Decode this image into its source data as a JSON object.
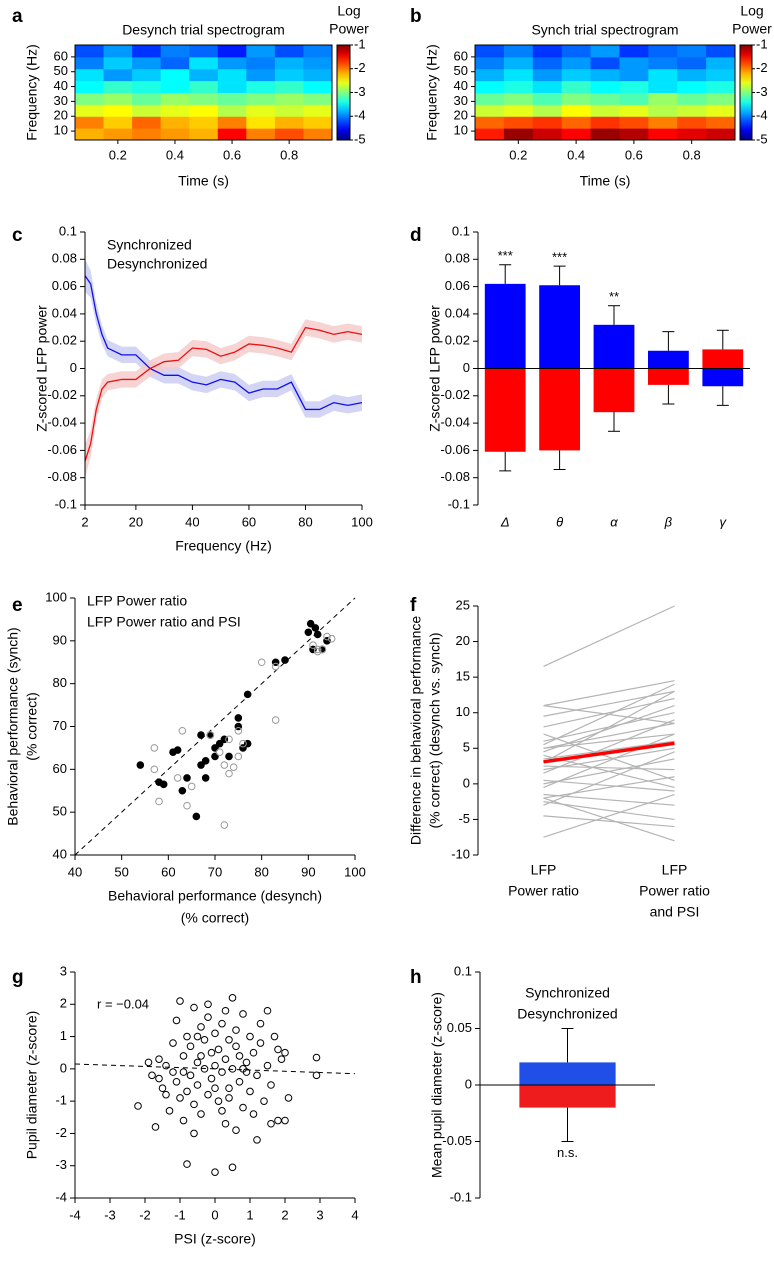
{
  "chart_data": [
    {
      "panel": "a",
      "type": "heatmap",
      "title": "Desynch trial spectrogram",
      "xlabel": "Time (s)",
      "ylabel": "Frequency (Hz)",
      "colorbar_label": [
        "Log",
        "Power"
      ],
      "x": [
        0.1,
        0.2,
        0.3,
        0.4,
        0.5,
        0.6,
        0.7,
        0.8,
        0.9
      ],
      "y": [
        8,
        16,
        24,
        32,
        40,
        48,
        56,
        64
      ],
      "z": [
        [
          -2.2,
          -2.1,
          -2.0,
          -2.1,
          -2.2,
          -1.5,
          -2.0,
          -1.8,
          -2.0
        ],
        [
          -2.0,
          -2.3,
          -1.9,
          -2.2,
          -2.3,
          -2.0,
          -2.4,
          -2.2,
          -2.3
        ],
        [
          -2.6,
          -2.5,
          -2.7,
          -2.6,
          -2.5,
          -2.8,
          -2.6,
          -2.7,
          -2.6
        ],
        [
          -3.0,
          -2.9,
          -3.1,
          -2.9,
          -3.0,
          -3.1,
          -3.0,
          -2.9,
          -3.0
        ],
        [
          -3.5,
          -3.3,
          -3.4,
          -3.5,
          -3.3,
          -3.6,
          -3.4,
          -3.3,
          -3.5
        ],
        [
          -3.6,
          -3.9,
          -3.7,
          -3.5,
          -3.8,
          -3.6,
          -3.9,
          -3.7,
          -3.8
        ],
        [
          -4.0,
          -3.7,
          -3.9,
          -4.1,
          -3.6,
          -3.9,
          -4.0,
          -3.8,
          -3.9
        ],
        [
          -4.2,
          -3.9,
          -4.3,
          -4.0,
          -4.1,
          -4.4,
          -3.9,
          -4.2,
          -4.0
        ]
      ],
      "xlim": [
        0.05,
        0.95
      ],
      "ylim": [
        4,
        68
      ],
      "xticks": [
        0.2,
        0.4,
        0.6,
        0.8
      ],
      "yticks": [
        10,
        20,
        30,
        40,
        50,
        60
      ],
      "clim": [
        -5,
        -1
      ],
      "cticks": [
        -1,
        -2,
        -3,
        -4,
        -5
      ],
      "colormap": "jet"
    },
    {
      "panel": "b",
      "type": "heatmap",
      "title": "Synch trial spectrogram",
      "xlabel": "Time (s)",
      "ylabel": "Frequency (Hz)",
      "colorbar_label": [
        "Log",
        "Power"
      ],
      "x": [
        0.1,
        0.2,
        0.3,
        0.4,
        0.5,
        0.6,
        0.7,
        0.8,
        0.9
      ],
      "y": [
        8,
        16,
        24,
        32,
        40,
        48,
        56,
        64
      ],
      "z": [
        [
          -1.6,
          -1.1,
          -1.3,
          -1.5,
          -1.1,
          -1.2,
          -1.5,
          -1.4,
          -1.3
        ],
        [
          -1.9,
          -1.8,
          -1.7,
          -1.9,
          -1.7,
          -1.8,
          -2.0,
          -1.8,
          -1.9
        ],
        [
          -2.7,
          -2.6,
          -2.8,
          -2.5,
          -2.7,
          -2.6,
          -2.8,
          -2.7,
          -2.6
        ],
        [
          -3.1,
          -3.0,
          -3.2,
          -3.0,
          -3.1,
          -3.2,
          -2.9,
          -3.1,
          -3.0
        ],
        [
          -3.5,
          -3.4,
          -3.6,
          -3.3,
          -3.5,
          -3.4,
          -3.6,
          -3.5,
          -3.4
        ],
        [
          -3.8,
          -3.6,
          -3.9,
          -3.7,
          -3.8,
          -3.9,
          -3.6,
          -3.8,
          -3.7
        ],
        [
          -4.0,
          -3.8,
          -4.1,
          -3.9,
          -4.2,
          -3.9,
          -4.0,
          -4.1,
          -3.8
        ],
        [
          -4.2,
          -4.0,
          -4.3,
          -4.1,
          -3.9,
          -4.3,
          -4.1,
          -4.0,
          -4.2
        ]
      ],
      "xlim": [
        0.05,
        0.95
      ],
      "ylim": [
        4,
        68
      ],
      "xticks": [
        0.2,
        0.4,
        0.6,
        0.8
      ],
      "yticks": [
        10,
        20,
        30,
        40,
        50,
        60
      ],
      "clim": [
        -5,
        -1
      ],
      "cticks": [
        -1,
        -2,
        -3,
        -4,
        -5
      ],
      "colormap": "jet"
    },
    {
      "panel": "c",
      "type": "line",
      "xlabel": "Frequency (Hz)",
      "ylabel": "Z-scored LFP power",
      "x": [
        2,
        4,
        6,
        8,
        10,
        15,
        20,
        25,
        30,
        35,
        40,
        45,
        50,
        55,
        60,
        65,
        70,
        75,
        80,
        85,
        90,
        95,
        100
      ],
      "series": [
        {
          "name": "Synchronized",
          "color": "#1010ee",
          "band_color": "#c9c9f2",
          "values": [
            0.068,
            0.062,
            0.04,
            0.025,
            0.015,
            0.01,
            0.01,
            0,
            -0.005,
            -0.005,
            -0.01,
            -0.012,
            -0.008,
            -0.01,
            -0.018,
            -0.015,
            -0.015,
            -0.01,
            -0.03,
            -0.03,
            -0.025,
            -0.027,
            -0.025
          ],
          "errors": [
            0.012,
            0.01,
            0.008,
            0.007,
            0.006,
            0.006,
            0.006,
            0.006,
            0.006,
            0.006,
            0.006,
            0.006,
            0.006,
            0.006,
            0.006,
            0.006,
            0.006,
            0.006,
            0.006,
            0.006,
            0.006,
            0.006,
            0.006
          ]
        },
        {
          "name": "Desynchronized",
          "color": "#ee1010",
          "band_color": "#f5c9c9",
          "values": [
            -0.068,
            -0.055,
            -0.03,
            -0.015,
            -0.01,
            -0.008,
            -0.008,
            0,
            0.005,
            0.006,
            0.015,
            0.014,
            0.009,
            0.012,
            0.018,
            0.017,
            0.015,
            0.012,
            0.03,
            0.028,
            0.025,
            0.027,
            0.025
          ],
          "errors": [
            0.012,
            0.01,
            0.008,
            0.007,
            0.006,
            0.006,
            0.006,
            0.006,
            0.006,
            0.006,
            0.006,
            0.006,
            0.006,
            0.006,
            0.006,
            0.006,
            0.006,
            0.006,
            0.006,
            0.006,
            0.006,
            0.006,
            0.006
          ]
        }
      ],
      "xlim": [
        2,
        100
      ],
      "ylim": [
        -0.1,
        0.1
      ],
      "xticks": [
        2,
        20,
        40,
        60,
        80,
        100
      ],
      "yticks": [
        -0.1,
        -0.08,
        -0.06,
        -0.04,
        -0.02,
        0,
        0.02,
        0.04,
        0.06,
        0.08,
        0.1
      ]
    },
    {
      "panel": "d",
      "type": "bar",
      "ylabel": "Z-scored LFP power",
      "categories": [
        "Δ",
        "θ",
        "α",
        "β",
        "γ"
      ],
      "series": [
        {
          "color": "#0000ff",
          "values": [
            0.062,
            0.061,
            0.032,
            0.013,
            -0.013
          ],
          "errors": [
            0.014,
            0.014,
            0.014,
            0.014,
            0.014
          ]
        },
        {
          "color": "#ff0000",
          "values": [
            -0.061,
            -0.06,
            -0.032,
            -0.012,
            0.014
          ],
          "errors": [
            0.014,
            0.014,
            0.014,
            0.014,
            0.014
          ]
        }
      ],
      "annotations": [
        "***",
        "***",
        "**",
        null,
        null
      ],
      "zero_line": true,
      "ylim": [
        -0.1,
        0.1
      ],
      "yticks": [
        -0.1,
        -0.08,
        -0.06,
        -0.04,
        -0.02,
        0,
        0.02,
        0.04,
        0.06,
        0.08,
        0.1
      ]
    },
    {
      "panel": "e",
      "type": "scatter",
      "xlabel": [
        "Behavioral performance (desynch)",
        "(% correct)"
      ],
      "ylabel": [
        "Behavioral performance (synch)",
        "(% correct)"
      ],
      "series": [
        {
          "name": "LFP Power ratio",
          "color": "#000000",
          "filled": true,
          "x": [
            54,
            58,
            59,
            61,
            62,
            63,
            64,
            66,
            67,
            67,
            68,
            68,
            69,
            70,
            70,
            71,
            72,
            73,
            75,
            75,
            76,
            77,
            77,
            83,
            85,
            90,
            90.5,
            91,
            91.5,
            92,
            93,
            94
          ],
          "values": [
            61,
            57,
            56.5,
            64,
            64.5,
            55,
            58,
            49,
            61,
            68,
            58,
            62,
            68,
            63,
            65,
            66,
            67,
            63,
            72,
            70,
            65,
            77.5,
            66,
            85,
            85.5,
            92,
            94,
            88,
            93,
            91.5,
            88,
            90
          ]
        },
        {
          "name": "LFP Power ratio and PSI",
          "color": "#999999",
          "filled": false,
          "x": [
            57,
            57,
            58,
            62,
            63,
            64,
            65,
            69,
            71,
            72,
            72,
            73,
            73,
            74,
            75,
            75,
            76,
            80,
            83,
            83,
            91,
            92,
            92,
            93,
            94,
            95
          ],
          "values": [
            65,
            60,
            52.5,
            58,
            69,
            51.5,
            56,
            68,
            64,
            47,
            61,
            67,
            59,
            60.5,
            63,
            69,
            66,
            85,
            84,
            71.5,
            89,
            88,
            87.5,
            88,
            91,
            90.5
          ]
        }
      ],
      "identity_line": true,
      "xlim": [
        40,
        100
      ],
      "ylim": [
        40,
        100
      ],
      "xticks": [
        40,
        50,
        60,
        70,
        80,
        90,
        100
      ],
      "yticks": [
        40,
        50,
        60,
        70,
        80,
        90,
        100
      ]
    },
    {
      "panel": "f",
      "type": "paired",
      "ylabel": [
        "Difference in behavioral performance",
        "(% correct) (desynch vs. synch)"
      ],
      "categories": [
        [
          "LFP",
          "Power ratio"
        ],
        [
          "LFP",
          "Power ratio",
          "and PSI"
        ]
      ],
      "category_colors": [
        "#000000",
        "#999999"
      ],
      "lines": [
        [
          16.5,
          25
        ],
        [
          11,
          14.5
        ],
        [
          11,
          8.5
        ],
        [
          9.5,
          13
        ],
        [
          8,
          12
        ],
        [
          6,
          10
        ],
        [
          5.5,
          14
        ],
        [
          5,
          8.5
        ],
        [
          5,
          7
        ],
        [
          4.5,
          11
        ],
        [
          3.5,
          6
        ],
        [
          3,
          13
        ],
        [
          2.5,
          2
        ],
        [
          2,
          5
        ],
        [
          1.5,
          9
        ],
        [
          0.5,
          -1
        ],
        [
          0,
          3.5
        ],
        [
          -0.5,
          7
        ],
        [
          -1.5,
          -3
        ],
        [
          -2,
          1
        ],
        [
          -2.5,
          -5
        ],
        [
          -3,
          4.5
        ],
        [
          -4.5,
          -6
        ],
        [
          -7.5,
          -1.5
        ],
        [
          -2,
          -8
        ],
        [
          4,
          -0.5
        ],
        [
          7,
          0.5
        ]
      ],
      "line_color": "#b4b4b4",
      "mean": [
        3.1,
        5.7
      ],
      "mean_color": "#ff0000",
      "ylim": [
        -10,
        25
      ],
      "yticks": [
        -10,
        -5,
        0,
        5,
        10,
        15,
        20,
        25
      ]
    },
    {
      "panel": "g",
      "type": "scatter",
      "xlabel": "PSI (z-score)",
      "ylabel": "Pupil diameter (z-score)",
      "annotation": "r = −0.04",
      "series": [
        {
          "color": "#000000",
          "filled": false,
          "x": [
            -2.2,
            -1.8,
            -1.7,
            -1.6,
            -1.5,
            -1.4,
            -1.3,
            -1.2,
            -1.1,
            -1.1,
            -1.0,
            -1.0,
            -0.9,
            -0.9,
            -0.8,
            -0.8,
            -0.7,
            -0.7,
            -0.6,
            -0.6,
            -0.5,
            -0.5,
            -0.4,
            -0.4,
            -0.3,
            -0.3,
            -0.2,
            -0.2,
            -0.1,
            -0.1,
            0,
            0,
            0,
            0.1,
            0.1,
            0.2,
            0.2,
            0.3,
            0.3,
            0.4,
            0.4,
            0.5,
            0.5,
            0.5,
            0.6,
            0.6,
            0.7,
            0.7,
            0.8,
            0.8,
            0.9,
            1.0,
            1.0,
            1.1,
            1.2,
            1.2,
            1.3,
            1.4,
            1.5,
            1.5,
            1.6,
            1.7,
            1.8,
            1.8,
            1.9,
            2.0,
            2.0,
            2.1,
            2.9,
            2.9,
            -1.9,
            -1.2,
            -0.8,
            -0.4,
            0.2,
            0.6,
            1.1,
            -0.2,
            -0.6,
            0.3,
            -1.4,
            0.9,
            1.3,
            -0.9,
            0,
            -0.5,
            0.4,
            0.8,
            -1.6,
            1.6
          ],
          "values": [
            -1.15,
            -0.2,
            -1.8,
            0.3,
            -0.6,
            0.1,
            -1.3,
            0.8,
            -0.4,
            1.5,
            2.1,
            -0.9,
            0.4,
            -1.6,
            -2.95,
            1.0,
            -0.2,
            0.7,
            1.9,
            -1.1,
            0.2,
            -0.5,
            1.3,
            -1.4,
            0,
            0.9,
            -0.8,
            1.6,
            0.5,
            -0.3,
            -3.2,
            0.1,
            1.1,
            -1.0,
            0.6,
            -0.1,
            1.4,
            -1.7,
            0.3,
            0.9,
            -0.6,
            2.2,
            -3.05,
            0,
            -1.9,
            1.2,
            0.4,
            -0.4,
            1.7,
            -1.2,
            0.2,
            -0.7,
            1.0,
            0.5,
            -2.2,
            -0.2,
            0.8,
            -1.0,
            1.8,
            0.1,
            -0.5,
            1.0,
            -1.6,
            0.6,
            0.3,
            -1.6,
            0.5,
            -0.9,
            0.35,
            -0.2,
            0.2,
            -0.1,
            -0.7,
            0.4,
            -1.3,
            0.7,
            -1.4,
            2.0,
            -2.0,
            1.8,
            -0.8,
            -0.1,
            1.4,
            -0.1,
            -0.6,
            1.0,
            -0.9,
            0,
            -0.3,
            -1.7
          ]
        }
      ],
      "fit": {
        "x": [
          -4,
          4
        ],
        "y": [
          0.15,
          -0.15
        ]
      },
      "xlim": [
        -4,
        4
      ],
      "ylim": [
        -4,
        3
      ],
      "xticks": [
        -4,
        -3,
        -2,
        -1,
        0,
        1,
        2,
        3,
        4
      ],
      "yticks": [
        -4,
        -3,
        -2,
        -1,
        0,
        1,
        2,
        3
      ]
    },
    {
      "panel": "h",
      "type": "bar",
      "ylabel": "Mean pupil diameter (z-score)",
      "annotation": "n.s.",
      "series": [
        {
          "name": "Synchronized",
          "color": "#1f4fe6",
          "values": [
            0.02
          ],
          "errors": [
            0.03
          ]
        },
        {
          "name": "Desynchronized",
          "color": "#ee1c1c",
          "values": [
            -0.02
          ],
          "errors": [
            0.03
          ]
        }
      ],
      "zero_line": true,
      "ylim": [
        -0.1,
        0.1
      ],
      "yticks": [
        -0.1,
        -0.05,
        0,
        0.05,
        0.1
      ]
    }
  ]
}
